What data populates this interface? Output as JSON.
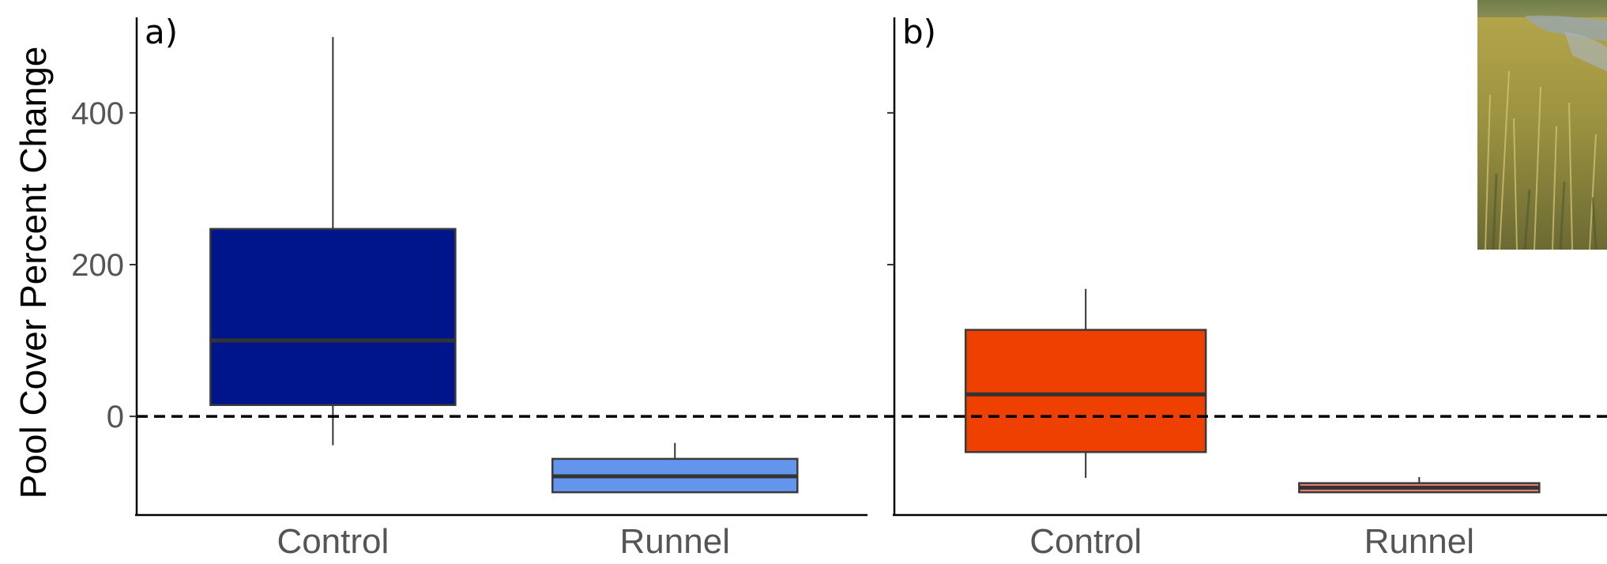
{
  "chart_data": [
    {
      "type": "box",
      "panel_label": "a)",
      "ylabel": "Pool Cover Percent Change",
      "ylim": [
        -130,
        530
      ],
      "yticks": [
        0,
        200,
        400
      ],
      "reference_line": 0,
      "categories": [
        "Control",
        "Runnel"
      ],
      "boxes": [
        {
          "category": "Control",
          "whisker_low": -38,
          "q1": 15,
          "median": 100,
          "q3": 247,
          "whisker_high": 500,
          "color": "#00158a"
        },
        {
          "category": "Runnel",
          "whisker_low": -100,
          "q1": -100,
          "median": -79,
          "q3": -56,
          "whisker_high": -35,
          "color": "#6495ed"
        }
      ]
    },
    {
      "type": "box",
      "panel_label": "b)",
      "ylim": [
        -130,
        530
      ],
      "yticks": [
        0,
        200,
        400
      ],
      "reference_line": 0,
      "categories": [
        "Control",
        "Runnel"
      ],
      "boxes": [
        {
          "category": "Control",
          "whisker_low": -81,
          "q1": -47,
          "median": 29,
          "q3": 114,
          "whisker_high": 168,
          "color": "#ee4000"
        },
        {
          "category": "Runnel",
          "whisker_low": -100,
          "q1": -100,
          "median": -94,
          "q3": -88,
          "whisker_high": -80,
          "color": "#f08070"
        }
      ]
    }
  ],
  "inset": {
    "icon": "marsh-photo"
  }
}
